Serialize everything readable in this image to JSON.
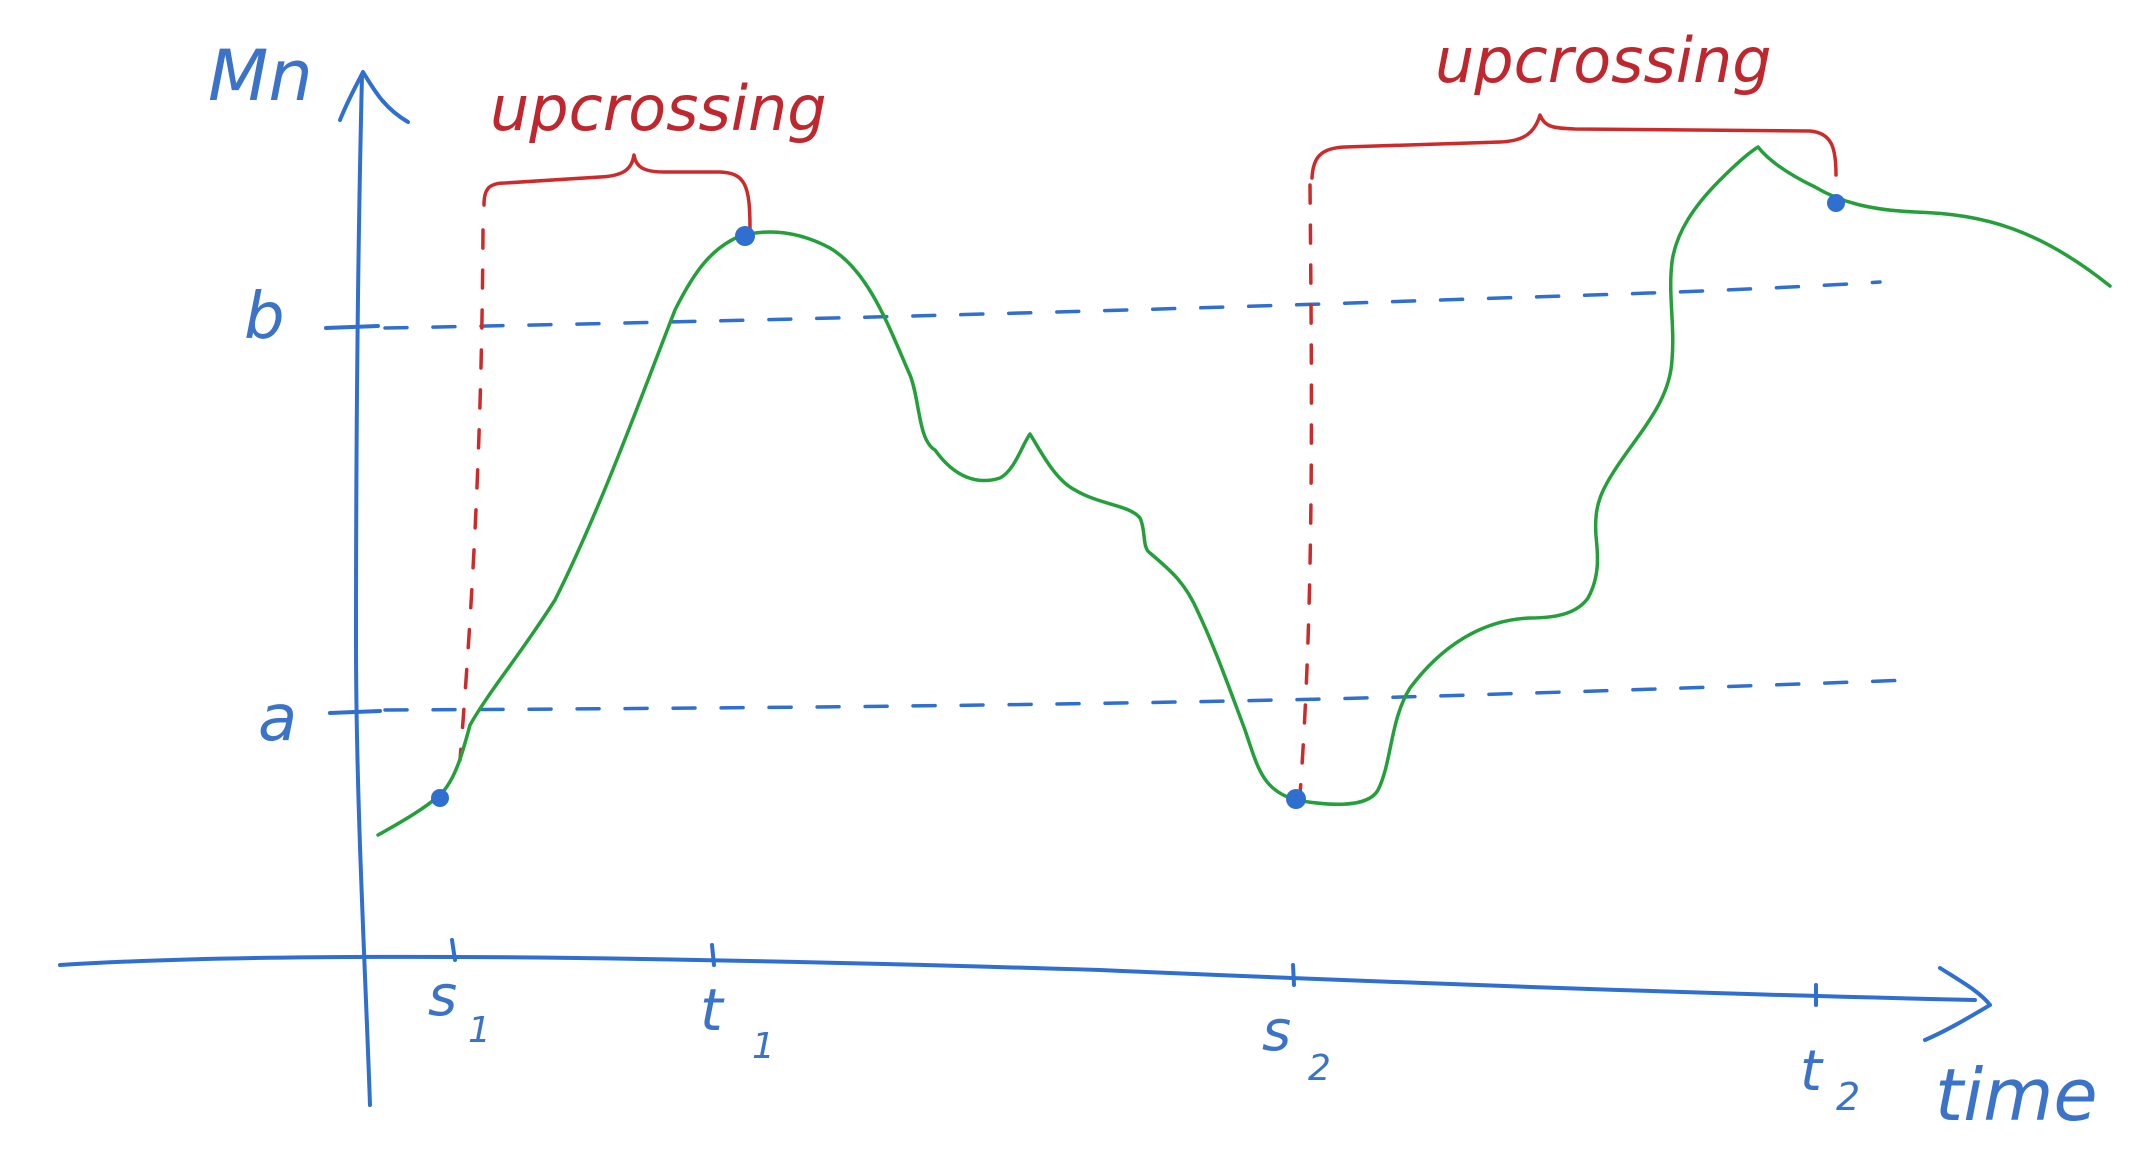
{
  "axes": {
    "y_label": "Mn",
    "x_label": "time"
  },
  "levels": {
    "upper": "b",
    "lower": "a"
  },
  "ticks": {
    "s1": "s",
    "s1_sub": "1",
    "t1": "t",
    "t1_sub": "1",
    "s2": "s",
    "s2_sub": "2",
    "t2": "t",
    "t2_sub": "2"
  },
  "annotations": {
    "first": "upcrossing",
    "second": "upcrossing"
  },
  "colors": {
    "axis": "#2f6fd0",
    "path": "#23a03a",
    "upcrossing": "#cf2a2a"
  }
}
